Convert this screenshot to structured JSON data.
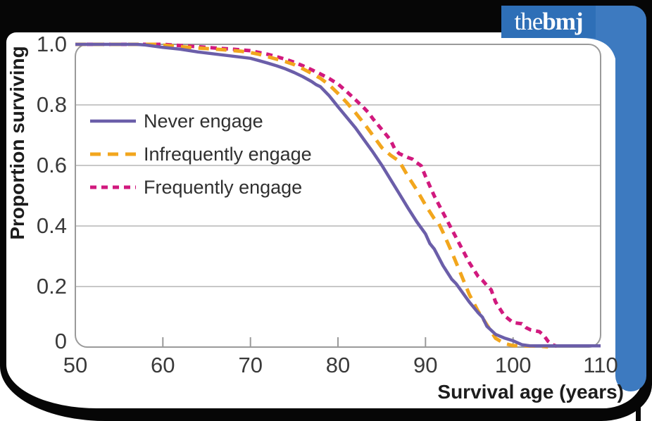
{
  "branding": {
    "logo_prefix": "the",
    "logo_suffix": "bmj",
    "logo_bg": "#2e6fb7",
    "bar_color": "#3d7ac0",
    "frame_color": "#060606"
  },
  "chart_data": {
    "type": "line",
    "title": "",
    "xlabel": "Survival age (years)",
    "ylabel": "Proportion surviving",
    "xlim": [
      50,
      110
    ],
    "ylim": [
      0,
      1
    ],
    "x_ticks": [
      50,
      60,
      70,
      80,
      90,
      100,
      110
    ],
    "y_ticks": [
      1.0,
      0.8,
      0.6,
      0.4,
      0.2,
      0
    ],
    "y_tick_labels": [
      "1.0",
      "0.8",
      "0.6",
      "0.4",
      "0.2",
      "0"
    ],
    "grid": "horizontal",
    "legend_position": "upper-left-inside",
    "series": [
      {
        "name": "Never engage",
        "color": "#6b5ea9",
        "dash": "solid",
        "points": [
          [
            50,
            1
          ],
          [
            57,
            1
          ],
          [
            58,
            0.998
          ],
          [
            60,
            0.99
          ],
          [
            62,
            0.984
          ],
          [
            64,
            0.975
          ],
          [
            66,
            0.968
          ],
          [
            68,
            0.961
          ],
          [
            70,
            0.954
          ],
          [
            71,
            0.946
          ],
          [
            72,
            0.938
          ],
          [
            73,
            0.929
          ],
          [
            74,
            0.919
          ],
          [
            75,
            0.907
          ],
          [
            76,
            0.893
          ],
          [
            77,
            0.877
          ],
          [
            77.5,
            0.867
          ],
          [
            78,
            0.86
          ],
          [
            79,
            0.83
          ],
          [
            79.5,
            0.812
          ],
          [
            80,
            0.794
          ],
          [
            81,
            0.759
          ],
          [
            82,
            0.724
          ],
          [
            83,
            0.684
          ],
          [
            84,
            0.644
          ],
          [
            85,
            0.601
          ],
          [
            86,
            0.554
          ],
          [
            87,
            0.507
          ],
          [
            88,
            0.459
          ],
          [
            89,
            0.414
          ],
          [
            90,
            0.374
          ],
          [
            90.5,
            0.342
          ],
          [
            91,
            0.324
          ],
          [
            92,
            0.269
          ],
          [
            93,
            0.224
          ],
          [
            93.5,
            0.209
          ],
          [
            94,
            0.189
          ],
          [
            95,
            0.149
          ],
          [
            96,
            0.114
          ],
          [
            96.5,
            0.099
          ],
          [
            97,
            0.069
          ],
          [
            98,
            0.042
          ],
          [
            99,
            0.03
          ],
          [
            100,
            0.021
          ],
          [
            101,
            0.008
          ],
          [
            102,
            0.004
          ],
          [
            110,
            0.004
          ]
        ]
      },
      {
        "name": "Infrequently engage",
        "color": "#f2a61d",
        "dash": "long-dash",
        "points": [
          [
            50,
            1
          ],
          [
            59,
            1
          ],
          [
            61,
            0.995
          ],
          [
            63,
            0.99
          ],
          [
            65,
            0.986
          ],
          [
            67,
            0.982
          ],
          [
            69,
            0.977
          ],
          [
            70,
            0.973
          ],
          [
            71,
            0.967
          ],
          [
            72,
            0.959
          ],
          [
            73,
            0.951
          ],
          [
            74,
            0.943
          ],
          [
            75,
            0.933
          ],
          [
            76,
            0.919
          ],
          [
            77,
            0.904
          ],
          [
            78,
            0.888
          ],
          [
            79,
            0.866
          ],
          [
            80,
            0.838
          ],
          [
            81,
            0.808
          ],
          [
            82,
            0.774
          ],
          [
            83,
            0.738
          ],
          [
            84,
            0.699
          ],
          [
            85,
            0.659
          ],
          [
            86,
            0.634
          ],
          [
            87,
            0.614
          ],
          [
            88,
            0.564
          ],
          [
            89,
            0.519
          ],
          [
            90,
            0.469
          ],
          [
            91,
            0.424
          ],
          [
            91.5,
            0.409
          ],
          [
            92,
            0.379
          ],
          [
            93,
            0.314
          ],
          [
            94,
            0.244
          ],
          [
            95,
            0.174
          ],
          [
            96,
            0.119
          ],
          [
            97,
            0.074
          ],
          [
            98,
            0.029
          ],
          [
            99,
            0.012
          ],
          [
            100,
            0.005
          ],
          [
            103,
            0.003
          ],
          [
            104,
            0.001
          ]
        ]
      },
      {
        "name": "Frequently engage",
        "color": "#d1197e",
        "dash": "short-dash",
        "points": [
          [
            50,
            1
          ],
          [
            60,
            1
          ],
          [
            62,
            0.996
          ],
          [
            64,
            0.992
          ],
          [
            66,
            0.988
          ],
          [
            68,
            0.984
          ],
          [
            70,
            0.979
          ],
          [
            71,
            0.973
          ],
          [
            72,
            0.967
          ],
          [
            73,
            0.959
          ],
          [
            74,
            0.951
          ],
          [
            75,
            0.941
          ],
          [
            76,
            0.929
          ],
          [
            77,
            0.916
          ],
          [
            78,
            0.902
          ],
          [
            79,
            0.887
          ],
          [
            80,
            0.869
          ],
          [
            81,
            0.844
          ],
          [
            82,
            0.817
          ],
          [
            83,
            0.789
          ],
          [
            83.5,
            0.774
          ],
          [
            84,
            0.754
          ],
          [
            85,
            0.719
          ],
          [
            86,
            0.684
          ],
          [
            86.5,
            0.654
          ],
          [
            87,
            0.639
          ],
          [
            88,
            0.626
          ],
          [
            88.5,
            0.621
          ],
          [
            89,
            0.609
          ],
          [
            89.5,
            0.599
          ],
          [
            90,
            0.564
          ],
          [
            91,
            0.499
          ],
          [
            92,
            0.444
          ],
          [
            93,
            0.389
          ],
          [
            94,
            0.334
          ],
          [
            95,
            0.279
          ],
          [
            96,
            0.234
          ],
          [
            96.5,
            0.221
          ],
          [
            97,
            0.204
          ],
          [
            97.5,
            0.189
          ],
          [
            98,
            0.149
          ],
          [
            99,
            0.104
          ],
          [
            100,
            0.081
          ],
          [
            101,
            0.077
          ],
          [
            101.5,
            0.064
          ],
          [
            102,
            0.057
          ],
          [
            103,
            0.051
          ],
          [
            103.5,
            0.039
          ],
          [
            104,
            0.019
          ],
          [
            104.5,
            0.008
          ],
          [
            105,
            0.003
          ]
        ]
      }
    ]
  }
}
